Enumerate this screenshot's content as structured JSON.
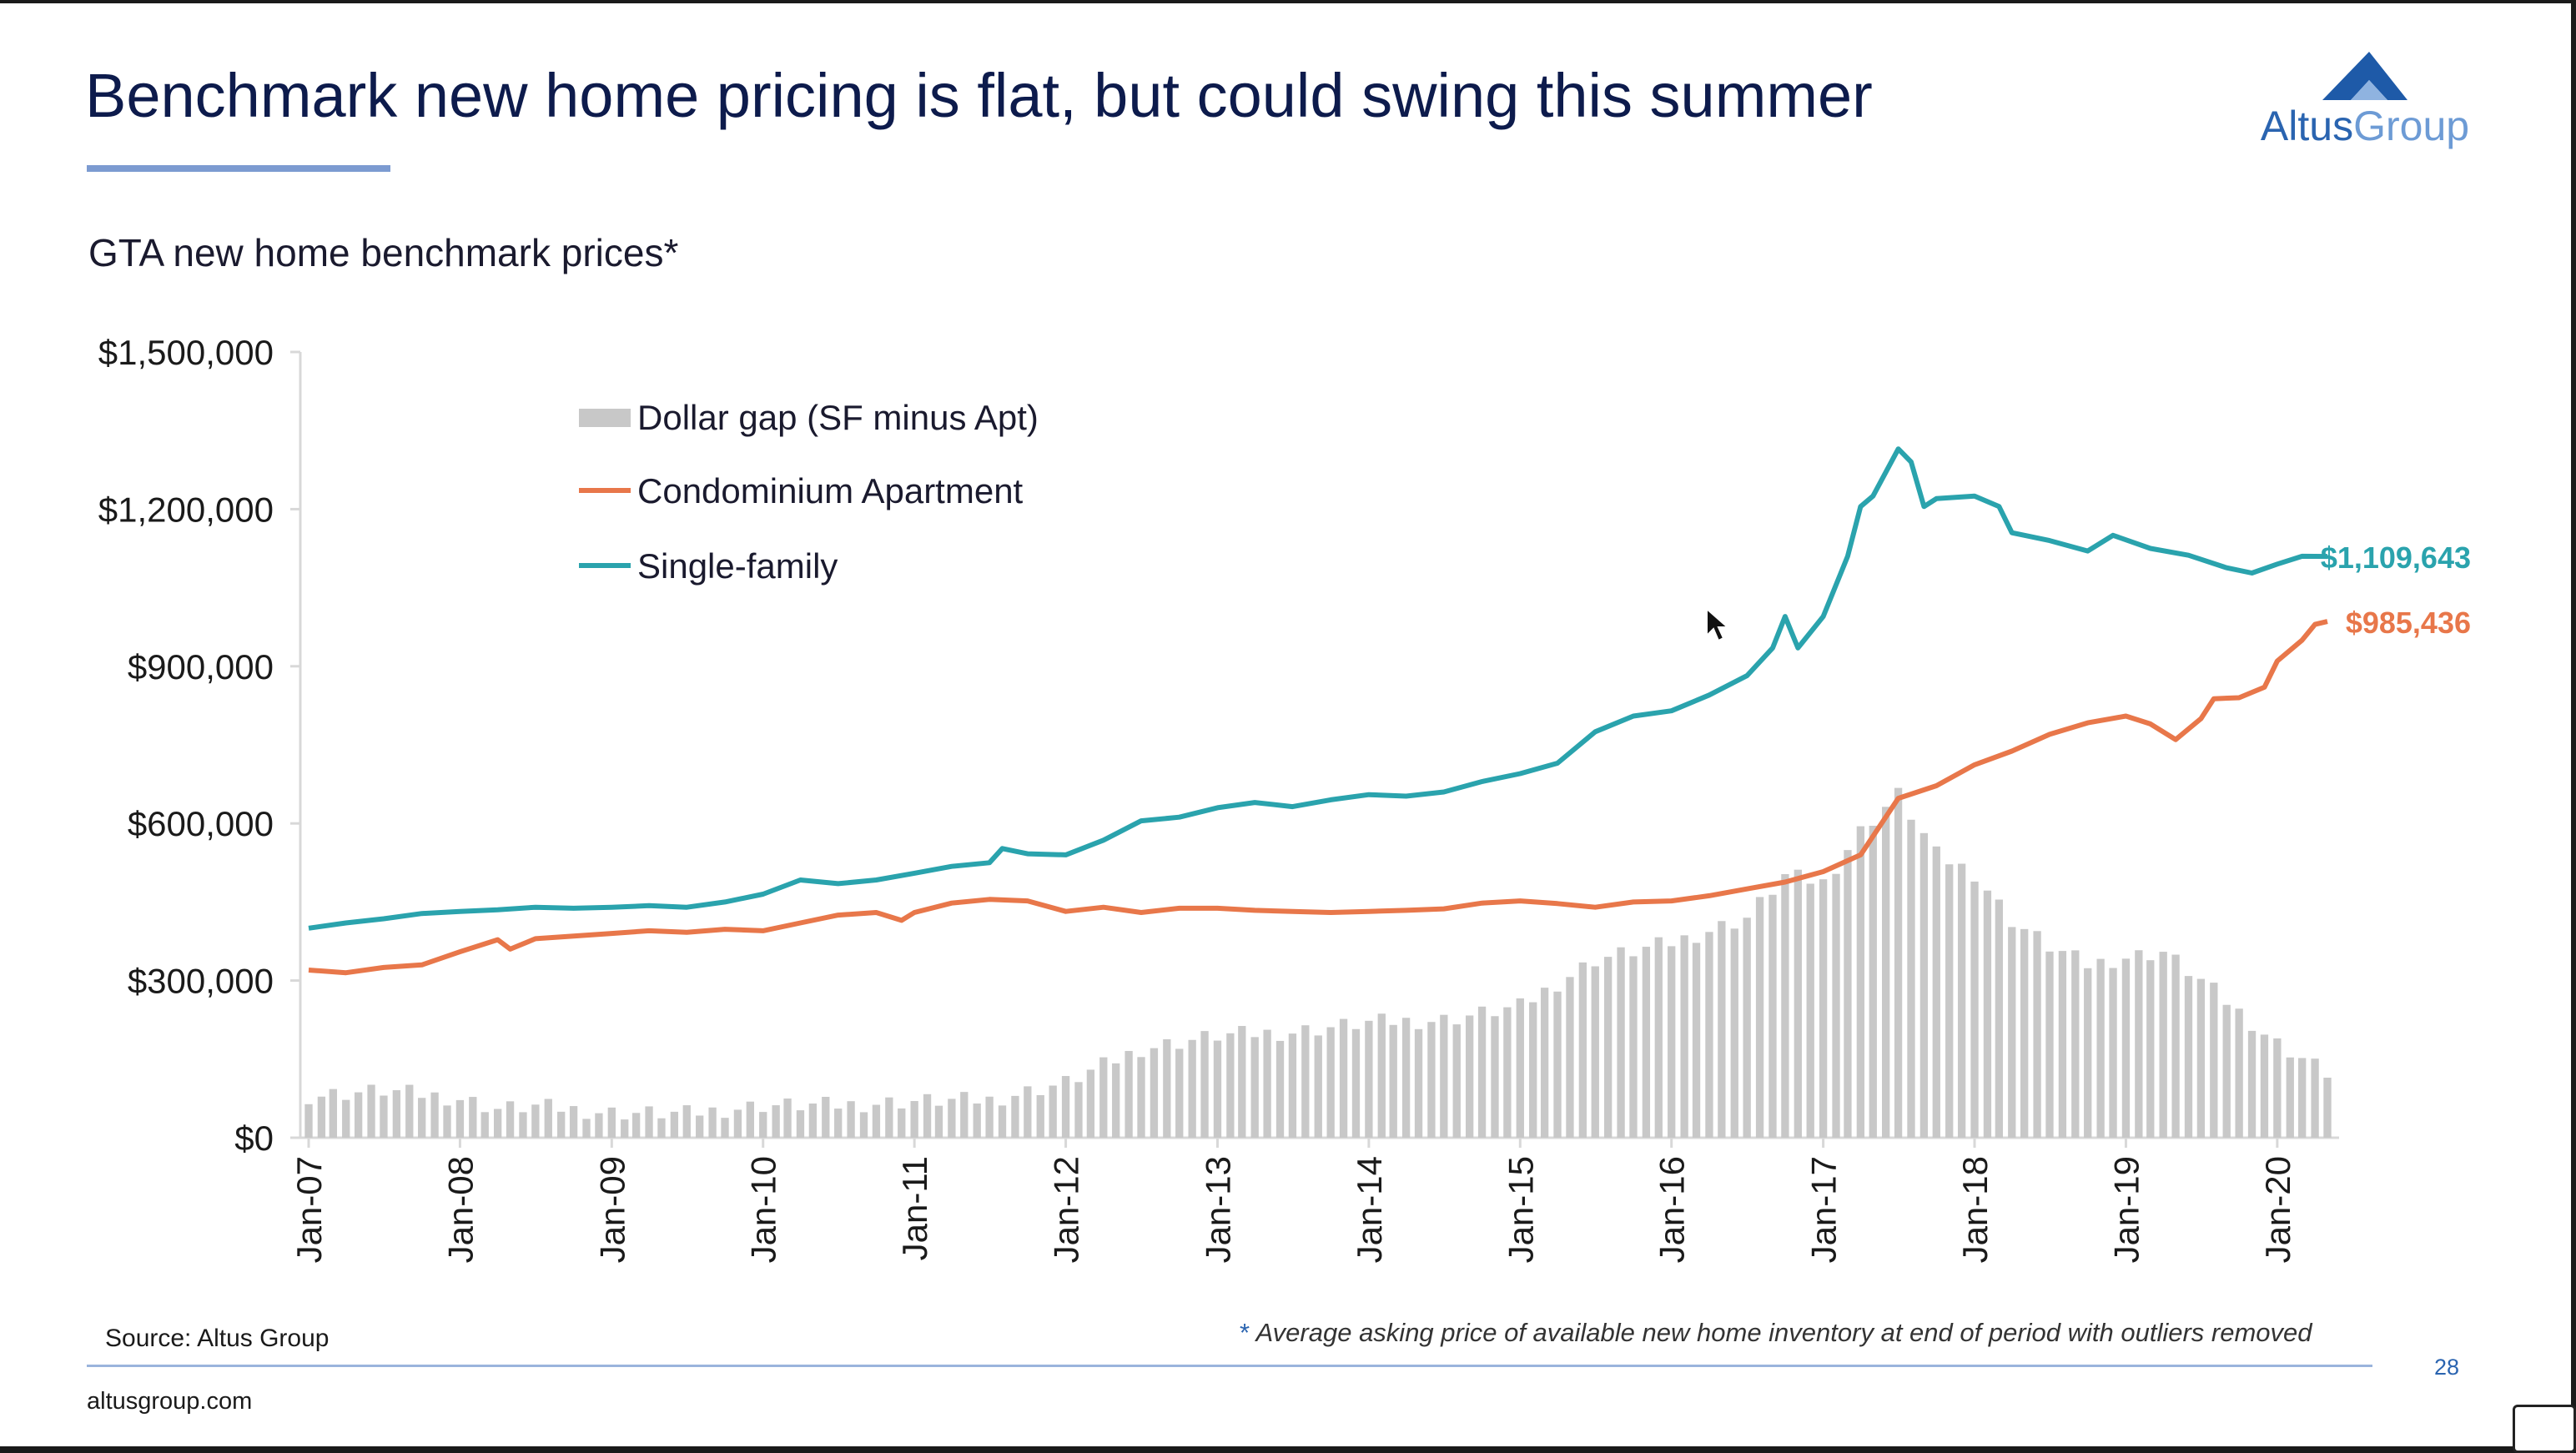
{
  "slide": {
    "title": "Benchmark new home pricing is flat, but could swing this summer",
    "chart_subtitle": "GTA new home benchmark prices*",
    "source": "Source: Altus Group",
    "footnote_marker": "*",
    "footnote": "Average asking price of available new home inventory at end of period with outliers removed",
    "website": "altusgroup.com",
    "page_number": "28",
    "logo": {
      "word1": "Altus",
      "word2": "Group",
      "icon": "altus-mountain-icon"
    }
  },
  "colors": {
    "title": "#0d1b4c",
    "gap_bars": "#c8c8c8",
    "condo": "#e8774a",
    "single_family": "#2aa3ad",
    "accent_blue": "#2a64b0"
  },
  "chart_data": {
    "type": "line",
    "title": "GTA new home benchmark prices*",
    "xlabel": "",
    "ylabel": "",
    "ylim": [
      0,
      1500000
    ],
    "y_ticks": [
      0,
      300000,
      600000,
      900000,
      1200000,
      1500000
    ],
    "y_tick_labels": [
      "$0",
      "$300,000",
      "$600,000",
      "$900,000",
      "$1,200,000",
      "$1,500,000"
    ],
    "x_tick_labels": [
      "Jan-07",
      "Jan-08",
      "Jan-09",
      "Jan-10",
      "Jan-11",
      "Jan-12",
      "Jan-13",
      "Jan-14",
      "Jan-15",
      "Jan-16",
      "Jan-17",
      "Jan-18",
      "Jan-19",
      "Jan-20"
    ],
    "x_start": "2007-01",
    "x_end": "2020-05",
    "legend_position": "top-left",
    "grid": false,
    "end_labels": {
      "single_family": "$1,109,643",
      "condo": "$985,436"
    },
    "series": [
      {
        "name": "Single-family",
        "type": "line",
        "points": [
          [
            "2007-01",
            400000
          ],
          [
            "2007-04",
            410000
          ],
          [
            "2007-07",
            418000
          ],
          [
            "2007-10",
            428000
          ],
          [
            "2008-01",
            432000
          ],
          [
            "2008-04",
            435000
          ],
          [
            "2008-07",
            440000
          ],
          [
            "2008-10",
            438000
          ],
          [
            "2009-01",
            440000
          ],
          [
            "2009-04",
            443000
          ],
          [
            "2009-07",
            440000
          ],
          [
            "2009-10",
            450000
          ],
          [
            "2010-01",
            465000
          ],
          [
            "2010-04",
            492000
          ],
          [
            "2010-07",
            485000
          ],
          [
            "2010-10",
            492000
          ],
          [
            "2011-01",
            505000
          ],
          [
            "2011-04",
            518000
          ],
          [
            "2011-07",
            525000
          ],
          [
            "2011-08",
            552000
          ],
          [
            "2011-10",
            542000
          ],
          [
            "2012-01",
            540000
          ],
          [
            "2012-04",
            568000
          ],
          [
            "2012-07",
            605000
          ],
          [
            "2012-10",
            612000
          ],
          [
            "2013-01",
            630000
          ],
          [
            "2013-04",
            640000
          ],
          [
            "2013-07",
            632000
          ],
          [
            "2013-10",
            645000
          ],
          [
            "2014-01",
            655000
          ],
          [
            "2014-04",
            652000
          ],
          [
            "2014-07",
            660000
          ],
          [
            "2014-10",
            680000
          ],
          [
            "2015-01",
            695000
          ],
          [
            "2015-04",
            715000
          ],
          [
            "2015-07",
            775000
          ],
          [
            "2015-10",
            805000
          ],
          [
            "2016-01",
            815000
          ],
          [
            "2016-04",
            845000
          ],
          [
            "2016-07",
            882000
          ],
          [
            "2016-09",
            935000
          ],
          [
            "2016-10",
            995000
          ],
          [
            "2016-11",
            935000
          ],
          [
            "2017-01",
            995000
          ],
          [
            "2017-03",
            1110000
          ],
          [
            "2017-04",
            1205000
          ],
          [
            "2017-05",
            1225000
          ],
          [
            "2017-07",
            1315000
          ],
          [
            "2017-08",
            1290000
          ],
          [
            "2017-09",
            1205000
          ],
          [
            "2017-10",
            1220000
          ],
          [
            "2018-01",
            1225000
          ],
          [
            "2018-03",
            1205000
          ],
          [
            "2018-04",
            1155000
          ],
          [
            "2018-07",
            1140000
          ],
          [
            "2018-10",
            1120000
          ],
          [
            "2018-12",
            1150000
          ],
          [
            "2019-03",
            1125000
          ],
          [
            "2019-06",
            1112000
          ],
          [
            "2019-09",
            1088000
          ],
          [
            "2019-11",
            1078000
          ],
          [
            "2020-01",
            1095000
          ],
          [
            "2020-03",
            1110000
          ],
          [
            "2020-05",
            1109643
          ]
        ]
      },
      {
        "name": "Condominium Apartment",
        "type": "line",
        "points": [
          [
            "2007-01",
            320000
          ],
          [
            "2007-04",
            315000
          ],
          [
            "2007-07",
            325000
          ],
          [
            "2007-10",
            330000
          ],
          [
            "2008-01",
            355000
          ],
          [
            "2008-04",
            378000
          ],
          [
            "2008-05",
            360000
          ],
          [
            "2008-07",
            380000
          ],
          [
            "2008-10",
            385000
          ],
          [
            "2009-01",
            390000
          ],
          [
            "2009-04",
            395000
          ],
          [
            "2009-07",
            392000
          ],
          [
            "2009-10",
            398000
          ],
          [
            "2010-01",
            395000
          ],
          [
            "2010-04",
            410000
          ],
          [
            "2010-07",
            425000
          ],
          [
            "2010-10",
            430000
          ],
          [
            "2010-12",
            415000
          ],
          [
            "2011-01",
            430000
          ],
          [
            "2011-04",
            448000
          ],
          [
            "2011-07",
            455000
          ],
          [
            "2011-10",
            452000
          ],
          [
            "2012-01",
            432000
          ],
          [
            "2012-04",
            440000
          ],
          [
            "2012-07",
            430000
          ],
          [
            "2012-10",
            438000
          ],
          [
            "2013-01",
            438000
          ],
          [
            "2013-04",
            434000
          ],
          [
            "2013-07",
            432000
          ],
          [
            "2013-10",
            430000
          ],
          [
            "2014-01",
            432000
          ],
          [
            "2014-04",
            434000
          ],
          [
            "2014-07",
            437000
          ],
          [
            "2014-10",
            448000
          ],
          [
            "2015-01",
            452000
          ],
          [
            "2015-04",
            447000
          ],
          [
            "2015-07",
            440000
          ],
          [
            "2015-10",
            450000
          ],
          [
            "2016-01",
            452000
          ],
          [
            "2016-04",
            462000
          ],
          [
            "2016-07",
            475000
          ],
          [
            "2016-10",
            488000
          ],
          [
            "2017-01",
            508000
          ],
          [
            "2017-04",
            540000
          ],
          [
            "2017-07",
            648000
          ],
          [
            "2017-10",
            672000
          ],
          [
            "2018-01",
            712000
          ],
          [
            "2018-04",
            738000
          ],
          [
            "2018-07",
            770000
          ],
          [
            "2018-10",
            792000
          ],
          [
            "2019-01",
            805000
          ],
          [
            "2019-03",
            790000
          ],
          [
            "2019-05",
            760000
          ],
          [
            "2019-07",
            800000
          ],
          [
            "2019-08",
            838000
          ],
          [
            "2019-10",
            840000
          ],
          [
            "2019-12",
            860000
          ],
          [
            "2020-01",
            910000
          ],
          [
            "2020-03",
            950000
          ],
          [
            "2020-04",
            980000
          ],
          [
            "2020-05",
            985436
          ]
        ]
      },
      {
        "name": "Dollar gap (SF minus Apt)",
        "type": "bar",
        "points": [
          [
            "2007-01",
            80000
          ],
          [
            "2007-07",
            90000
          ],
          [
            "2008-01",
            75000
          ],
          [
            "2008-04",
            55000
          ],
          [
            "2008-07",
            60000
          ],
          [
            "2009-01",
            48000
          ],
          [
            "2009-07",
            46000
          ],
          [
            "2010-01",
            62000
          ],
          [
            "2010-07",
            62000
          ],
          [
            "2011-01",
            70000
          ],
          [
            "2011-07",
            72000
          ],
          [
            "2012-01",
            105000
          ],
          [
            "2012-07",
            170000
          ],
          [
            "2013-01",
            195000
          ],
          [
            "2013-07",
            202000
          ],
          [
            "2014-01",
            220000
          ],
          [
            "2014-07",
            225000
          ],
          [
            "2015-01",
            250000
          ],
          [
            "2015-07",
            340000
          ],
          [
            "2016-01",
            372000
          ],
          [
            "2016-07",
            420000
          ],
          [
            "2016-10",
            500000
          ],
          [
            "2017-01",
            487000
          ],
          [
            "2017-04",
            585000
          ],
          [
            "2017-07",
            655000
          ],
          [
            "2017-10",
            540000
          ],
          [
            "2018-01",
            505000
          ],
          [
            "2018-04",
            415000
          ],
          [
            "2018-07",
            365000
          ],
          [
            "2018-10",
            330000
          ],
          [
            "2019-01",
            345000
          ],
          [
            "2019-04",
            355000
          ],
          [
            "2019-07",
            300000
          ],
          [
            "2019-10",
            240000
          ],
          [
            "2020-01",
            180000
          ],
          [
            "2020-05",
            124207
          ]
        ]
      }
    ]
  }
}
